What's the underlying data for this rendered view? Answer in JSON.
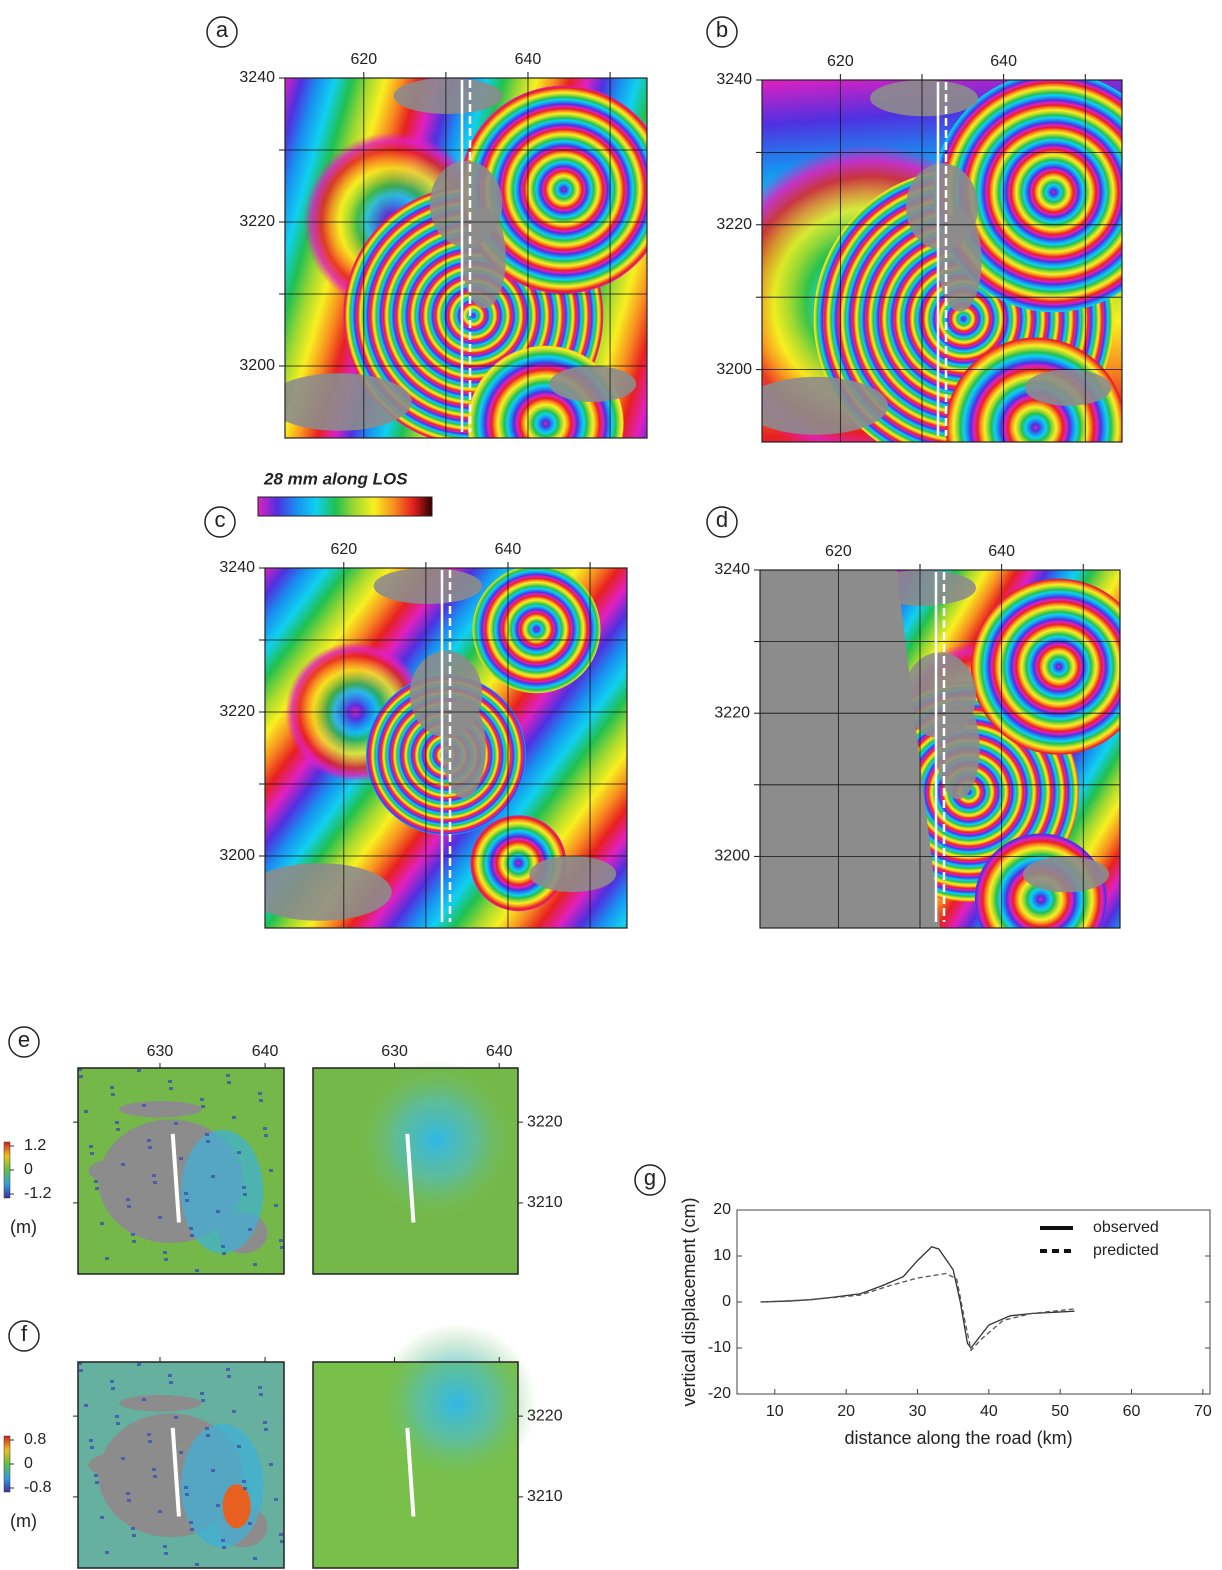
{
  "maps": {
    "xlim": [
      610.4,
      654.5
    ],
    "ylim": [
      3190,
      3240
    ],
    "xticks": [
      620,
      640
    ],
    "yticks": [
      3240,
      3220,
      3200
    ],
    "xgrid": [
      620,
      630,
      640,
      650
    ],
    "ygrid": [
      3240,
      3230,
      3220,
      3210,
      3200
    ],
    "panels": [
      {
        "label": "a"
      },
      {
        "label": "b"
      },
      {
        "label": "c"
      },
      {
        "label": "d"
      }
    ]
  },
  "colorbar": {
    "title": "28 mm along LOS"
  },
  "ef": {
    "xlim": [
      622.2,
      641.8
    ],
    "ylim": [
      3201.2,
      3226.7
    ],
    "xticks": [
      630,
      640
    ],
    "yticks": [
      3220,
      3210
    ],
    "panels": [
      {
        "label": "e",
        "colorbar_ticks": [
          1.2,
          0,
          -1.2
        ],
        "unit": "(m)"
      },
      {
        "label": "f",
        "colorbar_ticks": [
          0.8,
          0,
          -0.8
        ],
        "unit": "(m)"
      }
    ]
  },
  "chart_data": {
    "type": "line",
    "label": "g",
    "xlabel": "distance along the road (km)",
    "ylabel": "vertical displacement (cm)",
    "xlim": [
      4.7,
      71
    ],
    "ylim": [
      -20,
      20
    ],
    "xticks": [
      10,
      20,
      30,
      40,
      50,
      60,
      70
    ],
    "yticks": [
      -20,
      -10,
      0,
      10,
      20
    ],
    "legend": "upper right",
    "series": [
      {
        "name": "observed",
        "color": "#333333",
        "dashed": false,
        "x": [
          8,
          12,
          15,
          18,
          22,
          25,
          28,
          30,
          32,
          33,
          35,
          36,
          37,
          37.5,
          38,
          40,
          43,
          46,
          52
        ],
        "values": [
          0,
          0.2,
          0.5,
          1,
          1.8,
          3.5,
          5.5,
          9,
          12,
          11.5,
          7,
          0,
          -9,
          -10,
          -9,
          -5,
          -3,
          -2.5,
          -2
        ]
      },
      {
        "name": "predicted",
        "color": "#555555",
        "dashed": true,
        "x": [
          8,
          15,
          22,
          26,
          30,
          34,
          35.5,
          36.5,
          37.5,
          39,
          42,
          46,
          52
        ],
        "values": [
          0,
          0.5,
          1.5,
          3.5,
          5.2,
          6.2,
          5,
          -3,
          -10.5,
          -8,
          -4,
          -2.5,
          -1.5
        ]
      }
    ]
  }
}
